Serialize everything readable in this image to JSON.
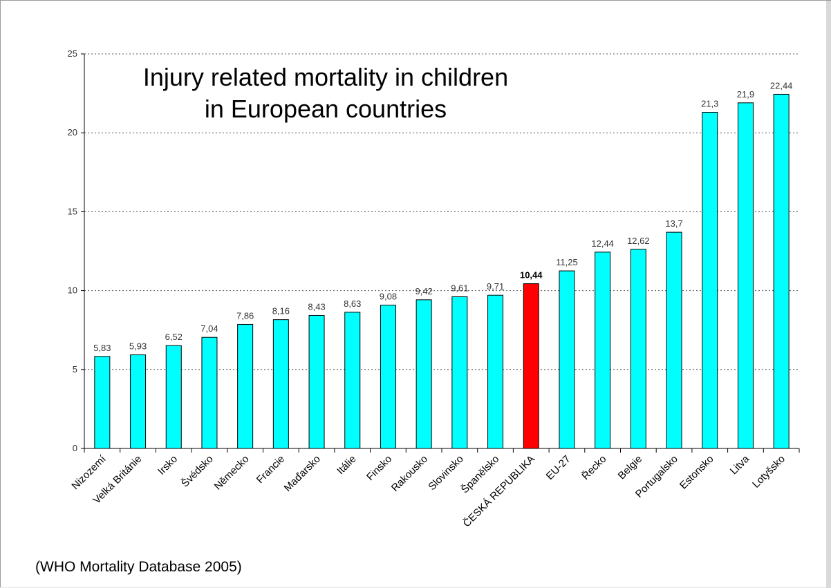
{
  "chart_data": {
    "type": "bar",
    "title_lines": [
      "Injury related mortality in children",
      "in European countries"
    ],
    "note": "(WHO Mortality Database 2005)",
    "categories": [
      "Nizozemí",
      "Velká Británie",
      "Irsko",
      "Švédsko",
      "Německo",
      "Francie",
      "Maďarsko",
      "Itálie",
      "Finsko",
      "Rakousko",
      "Slovinsko",
      "Španělsko",
      "ČESKÁ REPUBLIKA",
      "EU-27",
      "Řecko",
      "Belgie",
      "Portugalsko",
      "Estonsko",
      "Litva",
      "Lotyšsko"
    ],
    "values": [
      5.83,
      5.93,
      6.52,
      7.04,
      7.86,
      8.16,
      8.43,
      8.63,
      9.08,
      9.42,
      9.61,
      9.71,
      10.44,
      11.25,
      12.44,
      12.62,
      13.7,
      21.3,
      21.9,
      22.44
    ],
    "value_labels": [
      "5,83",
      "5,93",
      "6,52",
      "7,04",
      "7,86",
      "8,16",
      "8,43",
      "8,63",
      "9,08",
      "9,42",
      "9,61",
      "9,71",
      "10,44",
      "11,25",
      "12,44",
      "12,62",
      "13,7",
      "21,3",
      "21,9",
      "22,44"
    ],
    "highlight_index": 12,
    "y_ticks": [
      0,
      5,
      10,
      15,
      20,
      25
    ],
    "ylim": [
      0,
      25
    ],
    "grid": "horizontal dotted",
    "colors": {
      "bar": "#00ffff",
      "highlight": "#ff0000",
      "bar_stroke": "#000000",
      "grid": "#555555"
    }
  }
}
